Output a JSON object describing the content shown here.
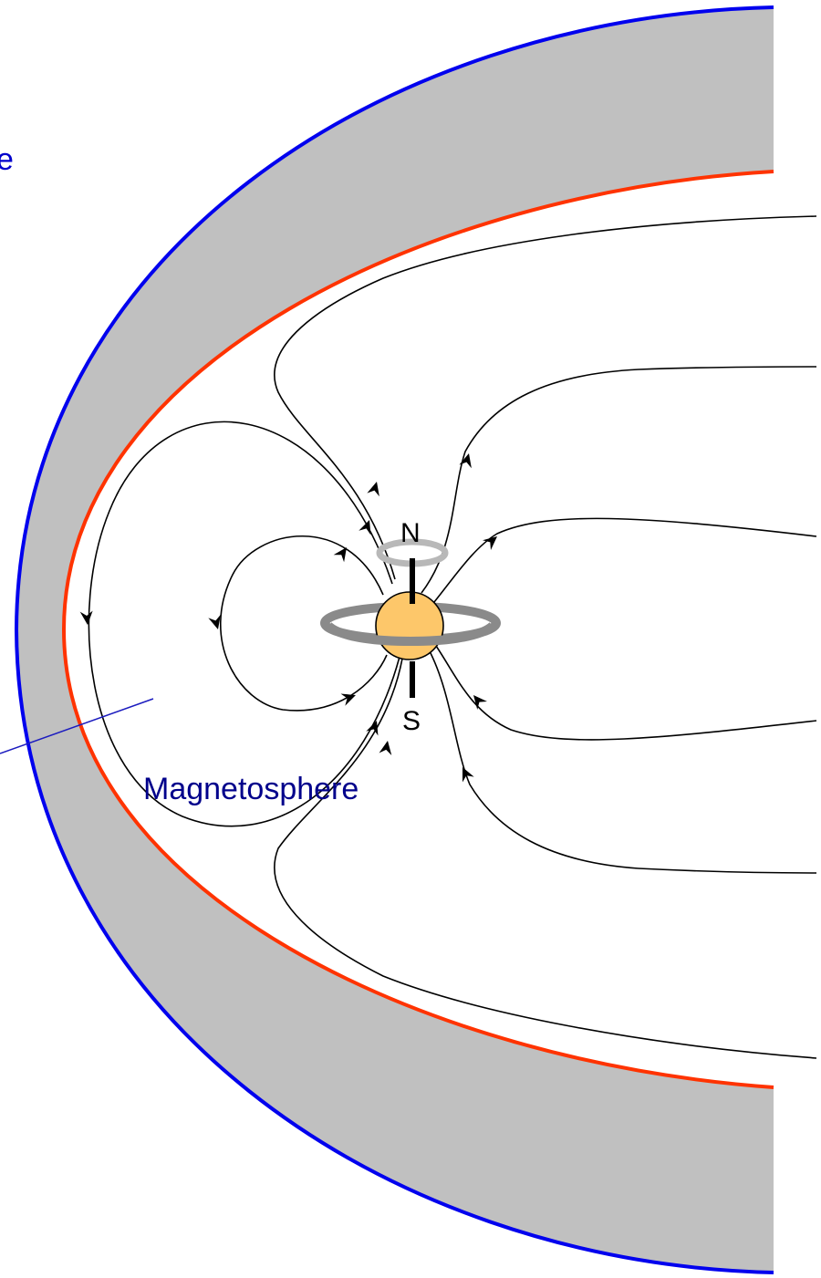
{
  "labels": {
    "partial_label_fragment": "e",
    "north_pole": "N",
    "south_pole": "S",
    "magnetosphere": "Magnetosphere"
  },
  "colors": {
    "bow_shock": "#0000ee",
    "magnetopause": "#ff3300",
    "magnetosheath": "#c0c0c0",
    "planet": "#fdc76a",
    "rings": "#8a8a8a",
    "field_lines": "#000000",
    "label_text": "#00008b",
    "leader_line": "#1c1cbf"
  }
}
